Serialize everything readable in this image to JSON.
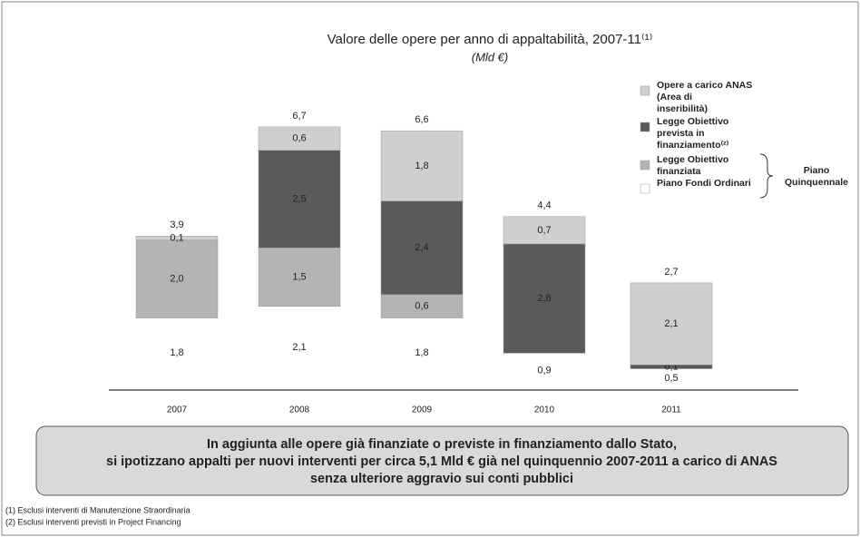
{
  "chart_data": {
    "type": "stacked_bar",
    "title": "Valore delle opere per anno di appaltabilità, 2007-11⁽¹⁾",
    "subtitle": "(Mld €)",
    "categories": [
      "2007",
      "2008",
      "2009",
      "2010",
      "2011"
    ],
    "series": [
      {
        "name": "Piano Fondi Ordinari",
        "color": "#ffffff",
        "values": [
          1.8,
          2.1,
          1.8,
          0.9,
          0.5
        ],
        "value_labels": [
          "1,8",
          "2,1",
          "1,8",
          "0,9",
          "0,5"
        ]
      },
      {
        "name": "Legge Obiettivo finanziata",
        "color": "#b4b4b4",
        "values": [
          2.0,
          1.5,
          0.6,
          null,
          null
        ],
        "value_labels": [
          "2,0",
          "1,5",
          "0,6",
          null,
          null
        ]
      },
      {
        "name": "Legge Obiettivo prevista in finanziamento⁽²⁾",
        "color": "#5a5a5a",
        "values": [
          null,
          2.5,
          2.4,
          2.8,
          0.1
        ],
        "value_labels": [
          null,
          "2,5",
          "2,4",
          "2,8",
          "0,1"
        ]
      },
      {
        "name": "Opere a carico ANAS (Area di inseribilità)",
        "color": "#cfcfcf",
        "values": [
          0.1,
          0.6,
          1.8,
          0.7,
          2.1
        ],
        "value_labels": [
          "0,1",
          "0,6",
          "1,8",
          "0,7",
          "2,1"
        ]
      }
    ],
    "totals": [
      3.9,
      6.7,
      6.6,
      4.4,
      2.7
    ],
    "totals_labels": [
      "3,9",
      "6,7",
      "6,6",
      "4,4",
      "2,7"
    ],
    "legend_group": {
      "label_lines": [
        "Piano",
        "Quinquennale"
      ]
    },
    "callout": [
      "In aggiunta alle opere già finanziate o previste in finanziamento dallo Stato,",
      "si ipotizzano appalti per nuovi interventi per circa 5,1 Mld € già nel quinquennio 2007-2011 a carico di ANAS",
      "senza ulteriore aggravio sui conti pubblici"
    ],
    "footnotes": [
      "(1) Esclusi interventi di Manutenzione Straordinaria",
      "(2) Esclusi interventi previsti in Project Financing"
    ]
  }
}
